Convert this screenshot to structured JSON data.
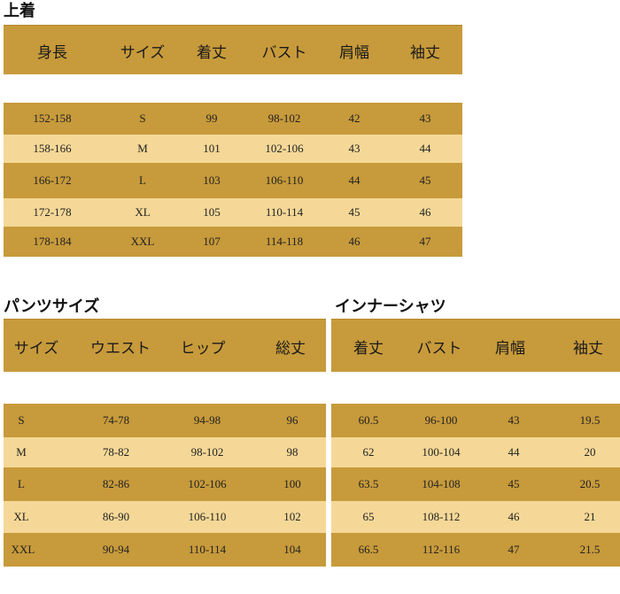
{
  "top": {
    "title": "上着",
    "headers": [
      "身長",
      "サイズ",
      "着丈",
      "バスト",
      "肩幅",
      "袖丈"
    ],
    "rows": [
      [
        "152-158",
        "S",
        "99",
        "98-102",
        "42",
        "43"
      ],
      [
        "158-166",
        "M",
        "101",
        "102-106",
        "43",
        "44"
      ],
      [
        "166-172",
        "L",
        "103",
        "106-110",
        "44",
        "45"
      ],
      [
        "172-178",
        "XL",
        "105",
        "110-114",
        "45",
        "46"
      ],
      [
        "178-184",
        "XXL",
        "107",
        "114-118",
        "46",
        "47"
      ]
    ]
  },
  "pants": {
    "title": "パンツサイズ",
    "headers": [
      "サイズ",
      "ウエスト",
      "ヒップ",
      "総丈"
    ],
    "rows": [
      [
        "S",
        "74-78",
        "94-98",
        "96"
      ],
      [
        "M",
        "78-82",
        "98-102",
        "98"
      ],
      [
        "L",
        "82-86",
        "102-106",
        "100"
      ],
      [
        "XL",
        "86-90",
        "106-110",
        "102"
      ],
      [
        "XXL",
        "90-94",
        "110-114",
        "104"
      ]
    ]
  },
  "inner": {
    "title": "インナーシャツ",
    "headers": [
      "着丈",
      "バスト",
      "肩幅",
      "袖丈"
    ],
    "rows": [
      [
        "60.5",
        "96-100",
        "43",
        "19.5"
      ],
      [
        "62",
        "100-104",
        "44",
        "20"
      ],
      [
        "63.5",
        "104-108",
        "45",
        "20.5"
      ],
      [
        "65",
        "108-112",
        "46",
        "21"
      ],
      [
        "66.5",
        "112-116",
        "47",
        "21.5"
      ]
    ]
  },
  "colors": {
    "dark_band": "#c79a3b",
    "light_band": "#f5d897"
  }
}
